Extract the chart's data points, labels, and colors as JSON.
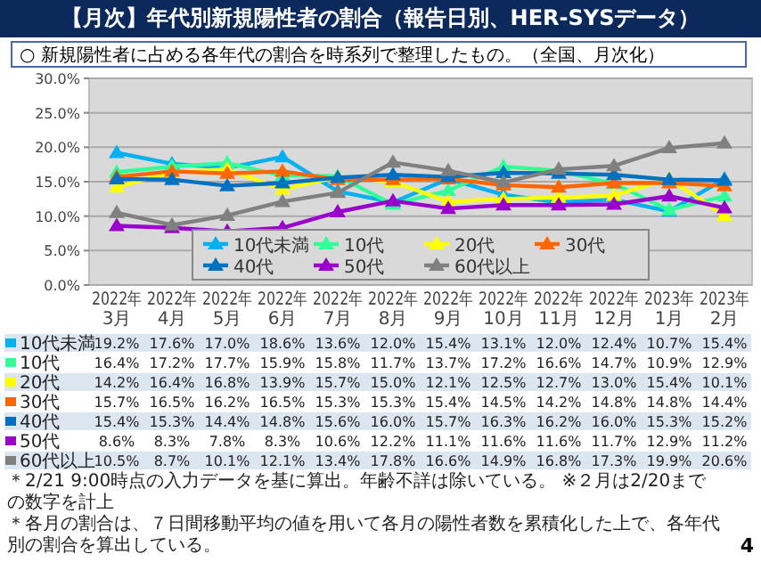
{
  "chart_data": {
    "type": "line",
    "title": "【月次】年代別新規陽性者の割合（報告日別、HER-SYSデータ）",
    "subtitle": "○ 新規陽性者に占める各年代の割合を時系列で整理したもの。（全国、月次化）",
    "categories": [
      "2022年3月",
      "2022年4月",
      "2022年5月",
      "2022年6月",
      "2022年7月",
      "2022年8月",
      "2022年9月",
      "2022年10月",
      "2022年11月",
      "2022年12月",
      "2023年1月",
      "2023年2月"
    ],
    "series": [
      {
        "name": "10代未満",
        "color": "#00b0f0",
        "values": [
          19.2,
          17.6,
          17.0,
          18.6,
          13.6,
          12.0,
          15.4,
          13.1,
          12.0,
          12.4,
          10.7,
          15.4
        ],
        "value_labels": [
          "19.2%",
          "17.6%",
          "17.0%",
          "18.6%",
          "13.6%",
          "12.0%",
          "15.4%",
          "13.1%",
          "12.0%",
          "12.4%",
          "10.7%",
          "15.4%"
        ]
      },
      {
        "name": "10代",
        "color": "#33ff99",
        "values": [
          16.4,
          17.2,
          17.7,
          15.9,
          15.8,
          11.7,
          13.7,
          17.2,
          16.6,
          14.7,
          10.9,
          12.9
        ],
        "value_labels": [
          "16.4%",
          "17.2%",
          "17.7%",
          "15.9%",
          "15.8%",
          "11.7%",
          "13.7%",
          "17.2%",
          "16.6%",
          "14.7%",
          "10.9%",
          "12.9%"
        ]
      },
      {
        "name": "20代",
        "color": "#ffff00",
        "values": [
          14.2,
          16.4,
          16.8,
          13.9,
          15.7,
          15.0,
          12.1,
          12.5,
          12.7,
          13.0,
          15.4,
          10.1
        ],
        "value_labels": [
          "14.2%",
          "16.4%",
          "16.8%",
          "13.9%",
          "15.7%",
          "15.0%",
          "12.1%",
          "12.5%",
          "12.7%",
          "13.0%",
          "15.4%",
          "10.1%"
        ]
      },
      {
        "name": "30代",
        "color": "#ff6600",
        "values": [
          15.7,
          16.5,
          16.2,
          16.5,
          15.3,
          15.3,
          15.4,
          14.5,
          14.2,
          14.8,
          14.8,
          14.4
        ],
        "value_labels": [
          "15.7%",
          "16.5%",
          "16.2%",
          "16.5%",
          "15.3%",
          "15.3%",
          "15.4%",
          "14.5%",
          "14.2%",
          "14.8%",
          "14.8%",
          "14.4%"
        ]
      },
      {
        "name": "40代",
        "color": "#0070c0",
        "values": [
          15.4,
          15.3,
          14.4,
          14.8,
          15.6,
          16.0,
          15.7,
          16.3,
          16.2,
          16.0,
          15.3,
          15.2
        ],
        "value_labels": [
          "15.4%",
          "15.3%",
          "14.4%",
          "14.8%",
          "15.6%",
          "16.0%",
          "15.7%",
          "16.3%",
          "16.2%",
          "16.0%",
          "15.3%",
          "15.2%"
        ]
      },
      {
        "name": "50代",
        "color": "#9900cc",
        "values": [
          8.6,
          8.3,
          7.8,
          8.3,
          10.6,
          12.2,
          11.1,
          11.6,
          11.6,
          11.7,
          12.9,
          11.2
        ],
        "value_labels": [
          "8.6%",
          "8.3%",
          "7.8%",
          "8.3%",
          "10.6%",
          "12.2%",
          "11.1%",
          "11.6%",
          "11.6%",
          "11.7%",
          "12.9%",
          "11.2%"
        ]
      },
      {
        "name": "60代以上",
        "color": "#808080",
        "values": [
          10.5,
          8.7,
          10.1,
          12.1,
          13.4,
          17.8,
          16.6,
          14.9,
          16.8,
          17.3,
          19.9,
          20.6
        ],
        "value_labels": [
          "10.5%",
          "8.7%",
          "10.1%",
          "12.1%",
          "13.4%",
          "17.8%",
          "16.6%",
          "14.9%",
          "16.8%",
          "17.3%",
          "19.9%",
          "20.6%"
        ]
      }
    ],
    "ylim": [
      0,
      30
    ],
    "yticks": [
      {
        "value": 0,
        "label": "0.0%"
      },
      {
        "value": 5,
        "label": "5.0%"
      },
      {
        "value": 10,
        "label": "10.0%"
      },
      {
        "value": 15,
        "label": "15.0%"
      },
      {
        "value": 20,
        "label": "20.0%"
      },
      {
        "value": 25,
        "label": "25.0%"
      },
      {
        "value": 30,
        "label": "30.0%"
      }
    ],
    "grid": "y",
    "legend": "bottom",
    "marker": "triangle",
    "annotations": [
      "＊2/21 9:00時点の入力データを基に算出。年齢不詳は除いている。 ※２月は2/20までの数字を計上",
      "＊各月の割合は、７日間移動平均の値を用いて各月の陽性者数を累積化した上で、各年代別の割合を算出している。",
      "4"
    ]
  }
}
